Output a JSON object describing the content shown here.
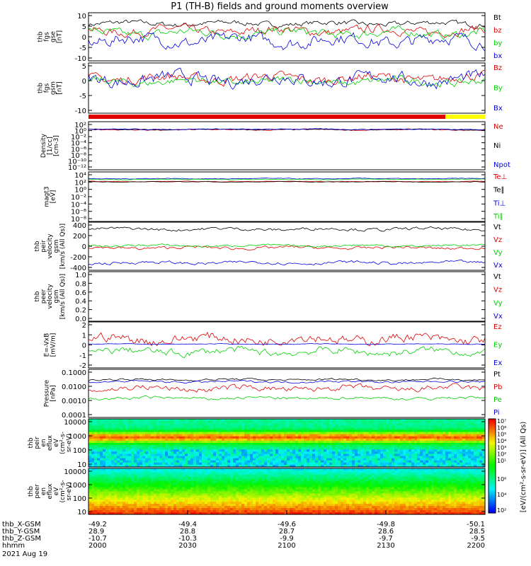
{
  "title": "P1 (TH-B) fields and ground moments overview",
  "colors": {
    "black": "#000000",
    "red": "#e00000",
    "green": "#00d000",
    "blue": "#0000e0",
    "yellow": "#ffff00"
  },
  "chart_data": [
    {
      "type": "line",
      "ylabel": [
        "thb",
        "fgs",
        "gse",
        "[nT]"
      ],
      "yticks": [
        "10",
        "5",
        "0",
        "-5",
        "-10"
      ],
      "ylim": [
        -10,
        10
      ],
      "legend": [
        {
          "label": "Bt",
          "color": "black"
        },
        {
          "label": "bz",
          "color": "red"
        },
        {
          "label": "by",
          "color": "green"
        },
        {
          "label": "bx",
          "color": "blue"
        }
      ],
      "series": [
        {
          "name": "Bt",
          "color": "black",
          "base": 5.5,
          "amp": 1.5
        },
        {
          "name": "bz",
          "color": "red",
          "base": 2.5,
          "amp": 2.5
        },
        {
          "name": "by",
          "color": "green",
          "base": 1.5,
          "amp": 2.5
        },
        {
          "name": "bx",
          "color": "blue",
          "base": -1.5,
          "amp": 3.5
        }
      ]
    },
    {
      "type": "line",
      "ylabel": [
        "thb",
        "fgs",
        "gsm",
        "[nT]"
      ],
      "yticks": [
        "5",
        "0",
        "-5",
        "-10"
      ],
      "ylim": [
        -13,
        10
      ],
      "legend": [
        {
          "label": "Bz",
          "color": "red"
        },
        {
          "label": "By",
          "color": "green"
        },
        {
          "label": "Bx",
          "color": "blue"
        }
      ],
      "series": [
        {
          "name": "Bz",
          "color": "red",
          "base": 3,
          "amp": 3
        },
        {
          "name": "By",
          "color": "green",
          "base": 1.5,
          "amp": 2.5
        },
        {
          "name": "Bx",
          "color": "blue",
          "base": 2.5,
          "amp": 4
        }
      ]
    },
    {
      "type": "line",
      "ylabel": [
        "Density",
        "[1/cc]",
        "[cm-3]"
      ],
      "yticks": [
        "10²",
        "10⁰",
        "10⁻²",
        "10⁻⁴",
        "10⁻⁶",
        "10⁻⁸",
        "10⁻¹⁰",
        "10⁻¹²"
      ],
      "ylim": [
        -13,
        3
      ],
      "log": true,
      "legend": [
        {
          "label": "Ne",
          "color": "red"
        },
        {
          "label": "Ni",
          "color": "black"
        },
        {
          "label": "Npot",
          "color": "blue"
        }
      ],
      "series": [
        {
          "name": "Ne",
          "color": "red",
          "base": 0.3,
          "amp": 0.3
        },
        {
          "name": "Ni",
          "color": "black",
          "base": 0.4,
          "amp": 0.2
        },
        {
          "name": "Npot",
          "color": "blue",
          "base": 0.5,
          "amp": 0.2
        }
      ]
    },
    {
      "type": "line",
      "ylabel": [
        "magt3",
        "[eV]"
      ],
      "yticks": [
        "10⁴",
        "10²",
        "10⁰",
        "10⁻²",
        "10⁻⁴",
        "10⁻⁶",
        "10⁻⁸"
      ],
      "ylim": [
        -9,
        5
      ],
      "log": true,
      "legend": [
        {
          "label": "Te⊥",
          "color": "red"
        },
        {
          "label": "Te∥",
          "color": "black"
        },
        {
          "label": "Ti⊥",
          "color": "blue"
        },
        {
          "label": "Ti∥",
          "color": "green"
        }
      ],
      "series": [
        {
          "name": "Ti⊥",
          "color": "blue",
          "base": 3.1,
          "amp": 0.15
        },
        {
          "name": "Ti∥",
          "color": "green",
          "base": 2.9,
          "amp": 0.15
        },
        {
          "name": "Te⊥",
          "color": "red",
          "base": 2.3,
          "amp": 0.1
        },
        {
          "name": "Te∥",
          "color": "black",
          "base": 2.2,
          "amp": 0.1
        }
      ]
    },
    {
      "type": "line",
      "ylabel": [
        "thb",
        "peir",
        "velocity",
        "gsm",
        "[km/s (All Qs)]"
      ],
      "yticks": [
        "400",
        "200",
        "0",
        "-200",
        "-400"
      ],
      "ylim": [
        -450,
        450
      ],
      "legend": [
        {
          "label": "Vt",
          "color": "black"
        },
        {
          "label": "Vz",
          "color": "red"
        },
        {
          "label": "Vy",
          "color": "green"
        },
        {
          "label": "Vx",
          "color": "blue"
        }
      ],
      "series": [
        {
          "name": "Vt",
          "color": "black",
          "base": 320,
          "amp": 40
        },
        {
          "name": "Vz",
          "color": "red",
          "base": -30,
          "amp": 40
        },
        {
          "name": "Vy",
          "color": "green",
          "base": 10,
          "amp": 30
        },
        {
          "name": "Vx",
          "color": "blue",
          "base": -310,
          "amp": 40
        }
      ]
    },
    {
      "type": "line",
      "ylabel": [
        "thb",
        "peer",
        "velocity",
        "gsm",
        "[km/s (All Qs)]"
      ],
      "yticks": [
        "1.0",
        "0.8",
        "0.6",
        "0.4",
        "0.2",
        "0.0"
      ],
      "ylim": [
        0,
        1
      ],
      "legend": [
        {
          "label": "Vt",
          "color": "black"
        },
        {
          "label": "Vz",
          "color": "red"
        },
        {
          "label": "Vy",
          "color": "green"
        },
        {
          "label": "Vx",
          "color": "blue"
        }
      ],
      "series": []
    },
    {
      "type": "line",
      "ylabel": [
        "E=-VxB",
        "[mV/m]"
      ],
      "yticks": [
        "2",
        "1",
        "0",
        "-1",
        "-2"
      ],
      "ylim": [
        -2.8,
        2.6
      ],
      "legend": [
        {
          "label": "Ez",
          "color": "red"
        },
        {
          "label": "Ey",
          "color": "green"
        },
        {
          "label": "Ex",
          "color": "blue"
        }
      ],
      "series": [
        {
          "name": "Ez",
          "color": "red",
          "base": 0.6,
          "amp": 0.8
        },
        {
          "name": "Ey",
          "color": "green",
          "base": -0.9,
          "amp": 0.6
        },
        {
          "name": "Ex",
          "color": "blue",
          "base": 0.0,
          "amp": 0.05
        }
      ]
    },
    {
      "type": "line",
      "ylabel": [
        "Pressure",
        "[nPa]"
      ],
      "yticks": [
        "0.1000",
        "0.0100",
        "0.0010",
        "0.0001"
      ],
      "ylim": [
        -4,
        -0.5
      ],
      "log": true,
      "legend": [
        {
          "label": "Pt",
          "color": "black"
        },
        {
          "label": "Pb",
          "color": "red"
        },
        {
          "label": "Pe",
          "color": "green"
        },
        {
          "label": "Pi",
          "color": "blue"
        }
      ],
      "series": [
        {
          "name": "Pt",
          "color": "black",
          "base": -1.25,
          "amp": 0.1
        },
        {
          "name": "Pi",
          "color": "blue",
          "base": -1.4,
          "amp": 0.1
        },
        {
          "name": "Pb",
          "color": "red",
          "base": -1.9,
          "amp": 0.3
        },
        {
          "name": "Pe",
          "color": "green",
          "base": -2.6,
          "amp": 0.15
        }
      ]
    },
    {
      "type": "heatmap",
      "ylabel": [
        "thb",
        "peir",
        "en",
        "eflux",
        "eV",
        "(cm²-s-",
        "sr-eV)"
      ],
      "yticks": [
        "10000",
        "1000",
        "100",
        "10"
      ]
    },
    {
      "type": "heatmap",
      "ylabel": [
        "thb",
        "peer",
        "en",
        "eflux",
        "eV",
        "(cm²-s-",
        "sr-eV)"
      ],
      "yticks": [
        "10000",
        "1000",
        "100",
        "10"
      ]
    }
  ],
  "colorbar": {
    "ticks": [
      "10⁷",
      "10⁶",
      "10⁵",
      "10⁴",
      "10³",
      "10²",
      "10¹"
    ],
    "ticks2": [
      "10⁶",
      "10⁴",
      "10²"
    ],
    "label": "[eV/(cm²-s-sr-eV)] (All Qs)"
  },
  "xaxis": {
    "rows": [
      {
        "label": "thb_X-GSM",
        "values": [
          "-49.2",
          "-49.4",
          "-49.6",
          "-49.8",
          "-50.1"
        ]
      },
      {
        "label": "thb_Y-GSM",
        "values": [
          "28.9",
          "28.8",
          "28.7",
          "28.6",
          "28.5"
        ]
      },
      {
        "label": "thb_Z-GSM",
        "values": [
          "-10.7",
          "-10.3",
          "-9.9",
          "-9.7",
          "-9.5"
        ]
      },
      {
        "label": "hhmm",
        "values": [
          "2000",
          "2030",
          "2100",
          "2130",
          "2200"
        ]
      }
    ],
    "date": "2021 Aug 19"
  }
}
